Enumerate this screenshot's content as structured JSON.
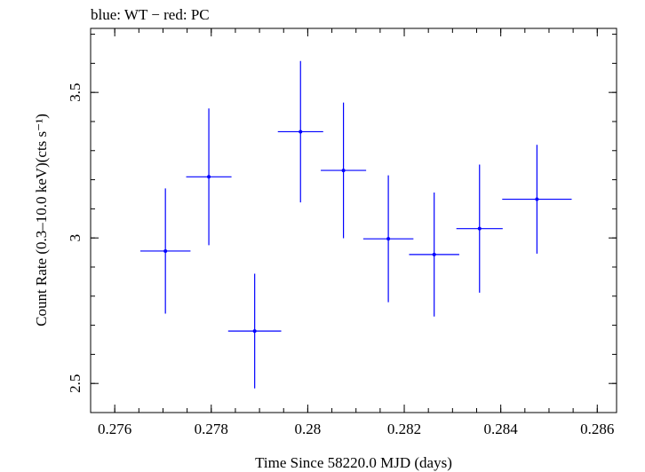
{
  "chart_data": {
    "type": "scatter",
    "title": "blue: WT − red: PC",
    "xlabel": "Time Since 58220.0 MJD (days)",
    "ylabel": "Count Rate (0.3–10.0 keV)(cts s⁻¹)",
    "xlim": [
      0.2755,
      0.2864
    ],
    "ylim": [
      2.4,
      3.72
    ],
    "x_ticks": [
      {
        "value": 0.276,
        "label": "0.276"
      },
      {
        "value": 0.278,
        "label": "0.278"
      },
      {
        "value": 0.28,
        "label": "0.28"
      },
      {
        "value": 0.282,
        "label": "0.282"
      },
      {
        "value": 0.284,
        "label": "0.284"
      },
      {
        "value": 0.286,
        "label": "0.286"
      }
    ],
    "y_ticks": [
      {
        "value": 2.5,
        "label": "2.5"
      },
      {
        "value": 3.0,
        "label": "3"
      },
      {
        "value": 3.5,
        "label": "3.5"
      }
    ],
    "series": [
      {
        "color": "#0000ff",
        "points": [
          {
            "x": 0.27705,
            "xerr": 0.00052,
            "y": 2.955,
            "yerr": 0.215
          },
          {
            "x": 0.27795,
            "xerr": 0.00047,
            "y": 3.21,
            "yerr": 0.235
          },
          {
            "x": 0.2789,
            "xerr": 0.00055,
            "y": 2.68,
            "yerr": 0.197
          },
          {
            "x": 0.27985,
            "xerr": 0.00047,
            "y": 3.365,
            "yerr": 0.243
          },
          {
            "x": 0.28074,
            "xerr": 0.00047,
            "y": 3.232,
            "yerr": 0.233
          },
          {
            "x": 0.28167,
            "xerr": 0.00052,
            "y": 2.997,
            "yerr": 0.218
          },
          {
            "x": 0.28262,
            "xerr": 0.00052,
            "y": 2.943,
            "yerr": 0.213
          },
          {
            "x": 0.28356,
            "xerr": 0.00048,
            "y": 3.032,
            "yerr": 0.22
          },
          {
            "x": 0.28475,
            "xerr": 0.00072,
            "y": 3.133,
            "yerr": 0.187
          }
        ]
      }
    ]
  }
}
